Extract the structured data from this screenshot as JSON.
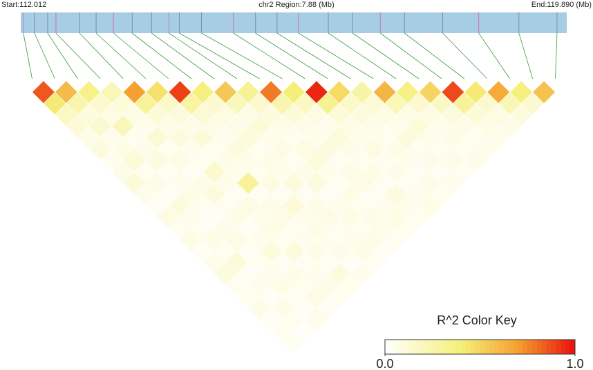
{
  "chart_data": {
    "type": "ld-heatmap",
    "start_label": "Start:112.012",
    "region_label": "chr2 Region:7.88 (Mb)",
    "end_label": "End:119.890 (Mb)",
    "xlim": [
      112.012,
      119.89
    ],
    "snp_positions": [
      112.05,
      112.21,
      112.4,
      112.52,
      112.86,
      113.1,
      113.35,
      113.62,
      113.9,
      114.15,
      114.3,
      114.62,
      115.08,
      115.4,
      115.71,
      116.02,
      116.45,
      116.8,
      117.2,
      117.55,
      118.1,
      118.62,
      119.2,
      119.75
    ],
    "r2": [
      [
        0.85,
        0.42,
        0.18,
        0.12,
        0.08,
        0.1,
        0.05,
        0.07,
        0.12,
        0.06,
        0.04,
        0.09,
        0.05,
        0.08,
        0.03,
        0.06,
        0.1,
        0.04,
        0.05,
        0.07,
        0.03,
        0.05,
        0.04
      ],
      [
        0.6,
        0.25,
        0.1,
        0.14,
        0.06,
        0.08,
        0.12,
        0.05,
        0.07,
        0.03,
        0.1,
        0.06,
        0.04,
        0.08,
        0.05,
        0.12,
        0.04,
        0.06,
        0.03,
        0.07,
        0.05,
        0.02
      ],
      [
        0.35,
        0.15,
        0.09,
        0.2,
        0.05,
        0.07,
        0.1,
        0.04,
        0.06,
        0.08,
        0.05,
        0.03,
        0.07,
        0.09,
        0.04,
        0.05,
        0.06,
        0.08,
        0.04,
        0.03,
        0.06
      ],
      [
        0.22,
        0.11,
        0.08,
        0.06,
        0.13,
        0.05,
        0.09,
        0.04,
        0.07,
        0.1,
        0.05,
        0.08,
        0.03,
        0.06,
        0.11,
        0.04,
        0.07,
        0.05,
        0.09,
        0.04
      ],
      [
        0.7,
        0.3,
        0.12,
        0.08,
        0.1,
        0.06,
        0.05,
        0.14,
        0.07,
        0.04,
        0.09,
        0.06,
        0.08,
        0.05,
        0.1,
        0.04,
        0.06,
        0.07,
        0.05
      ],
      [
        0.45,
        0.16,
        0.1,
        0.07,
        0.12,
        0.05,
        0.08,
        0.06,
        0.3,
        0.04,
        0.07,
        0.09,
        0.05,
        0.06,
        0.08,
        0.04,
        0.1,
        0.05
      ],
      [
        0.9,
        0.28,
        0.13,
        0.08,
        0.06,
        0.1,
        0.07,
        0.05,
        0.09,
        0.04,
        0.12,
        0.06,
        0.08,
        0.05,
        0.07,
        0.03,
        0.06
      ],
      [
        0.38,
        0.15,
        0.09,
        0.07,
        0.11,
        0.05,
        0.08,
        0.06,
        0.1,
        0.04,
        0.07,
        0.09,
        0.05,
        0.06,
        0.08,
        0.04
      ],
      [
        0.55,
        0.2,
        0.08,
        0.12,
        0.06,
        0.09,
        0.05,
        0.07,
        0.1,
        0.04,
        0.06,
        0.08,
        0.05,
        0.07,
        0.03
      ],
      [
        0.32,
        0.14,
        0.1,
        0.07,
        0.05,
        0.09,
        0.11,
        0.06,
        0.04,
        0.08,
        0.05,
        0.07,
        0.06,
        0.04
      ],
      [
        0.78,
        0.25,
        0.12,
        0.08,
        0.06,
        0.1,
        0.05,
        0.07,
        0.09,
        0.04,
        0.06,
        0.08,
        0.05
      ],
      [
        0.4,
        0.18,
        0.09,
        0.06,
        0.11,
        0.07,
        0.05,
        0.08,
        0.04,
        0.1,
        0.06,
        0.05
      ],
      [
        0.95,
        0.33,
        0.12,
        0.08,
        0.06,
        0.09,
        0.05,
        0.07,
        0.04,
        0.06,
        0.08
      ],
      [
        0.48,
        0.16,
        0.1,
        0.07,
        0.05,
        0.08,
        0.06,
        0.04,
        0.07,
        0.05
      ],
      [
        0.27,
        0.13,
        0.09,
        0.06,
        0.1,
        0.05,
        0.07,
        0.04,
        0.06
      ],
      [
        0.62,
        0.21,
        0.08,
        0.11,
        0.06,
        0.05,
        0.07,
        0.04
      ],
      [
        0.36,
        0.14,
        0.09,
        0.06,
        0.08,
        0.05,
        0.07
      ],
      [
        0.5,
        0.18,
        0.1,
        0.07,
        0.05,
        0.06
      ],
      [
        0.88,
        0.3,
        0.12,
        0.08,
        0.06
      ],
      [
        0.42,
        0.15,
        0.09,
        0.07
      ],
      [
        0.66,
        0.22,
        0.1
      ],
      [
        0.38,
        0.14
      ],
      [
        0.57
      ]
    ],
    "colorbar": {
      "title": "R^2 Color Key",
      "lim": [
        0,
        1
      ],
      "ticks": [
        {
          "value": 0,
          "label": "0.0"
        },
        {
          "value": 1,
          "label": "1.0"
        }
      ],
      "color_stops": [
        [
          0,
          "#ffffff"
        ],
        [
          0.4,
          "#f5ef7a"
        ],
        [
          0.7,
          "#f5a030"
        ],
        [
          1,
          "#e8100a"
        ]
      ]
    },
    "track_color": "#a6cde3",
    "connector_color": "#3a9a3a"
  }
}
